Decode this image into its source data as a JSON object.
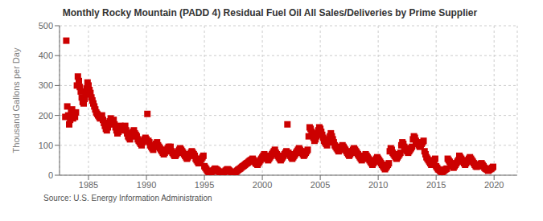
{
  "chart_data": {
    "type": "scatter",
    "title": "Monthly Rocky Mountain (PADD 4) Residual Fuel Oil All Sales/Deliveries by Prime Supplier",
    "ylabel": "Thousand Gallons per Day",
    "annotations": [
      "Source: U.S. Energy Information Administration"
    ],
    "color": "#cc0000",
    "marker": "square",
    "grid": true,
    "xlim": [
      1982.5,
      2022.0
    ],
    "ylim": [
      0,
      500
    ],
    "xticks": [
      1985,
      1990,
      1995,
      2000,
      2005,
      2010,
      2015,
      2020
    ],
    "yticks": [
      0,
      100,
      200,
      300,
      400,
      500
    ],
    "x": [
      1983,
      1983.0833333333333,
      1983.1666666666667,
      1983.25,
      1983.3333333333333,
      1983.4166666666667,
      1983.5,
      1983.5833333333333,
      1983.6666666666667,
      1983.75,
      1983.8333333333333,
      1983.9166666666667,
      1984,
      1984.0833333333333,
      1984.1666666666667,
      1984.25,
      1984.3333333333333,
      1984.4166666666667,
      1984.5,
      1984.5833333333333,
      1984.6666666666667,
      1984.75,
      1984.8333333333333,
      1984.9166666666667,
      1985,
      1985.0833333333333,
      1985.1666666666667,
      1985.25,
      1985.3333333333333,
      1985.4166666666667,
      1985.5,
      1985.5833333333333,
      1985.6666666666667,
      1985.75,
      1985.8333333333333,
      1985.9166666666667,
      1986,
      1986.0833333333333,
      1986.1666666666667,
      1986.25,
      1986.3333333333333,
      1986.4166666666667,
      1986.5,
      1986.5833333333333,
      1986.6666666666667,
      1986.75,
      1986.8333333333333,
      1986.9166666666667,
      1987,
      1987.0833333333333,
      1987.1666666666667,
      1987.25,
      1987.3333333333333,
      1987.4166666666667,
      1987.5,
      1987.5833333333333,
      1987.6666666666667,
      1987.75,
      1987.8333333333333,
      1987.9166666666667,
      1988,
      1988.0833333333333,
      1988.1666666666667,
      1988.25,
      1988.3333333333333,
      1988.4166666666667,
      1988.5,
      1988.5833333333333,
      1988.6666666666667,
      1988.75,
      1988.8333333333333,
      1988.9166666666667,
      1989,
      1989.0833333333333,
      1989.1666666666667,
      1989.25,
      1989.3333333333333,
      1989.4166666666667,
      1989.5,
      1989.5833333333333,
      1989.6666666666667,
      1989.75,
      1989.8333333333333,
      1989.9166666666667,
      1990,
      1990.0833333333333,
      1990.1666666666667,
      1990.25,
      1990.3333333333333,
      1990.4166666666667,
      1990.5,
      1990.5833333333333,
      1990.6666666666667,
      1990.75,
      1990.8333333333333,
      1990.9166666666667,
      1991,
      1991.0833333333333,
      1991.1666666666667,
      1991.25,
      1991.3333333333333,
      1991.4166666666667,
      1991.5,
      1991.5833333333333,
      1991.6666666666667,
      1991.75,
      1991.8333333333333,
      1991.9166666666667,
      1992,
      1992.0833333333333,
      1992.1666666666667,
      1992.25,
      1992.3333333333333,
      1992.4166666666667,
      1992.5,
      1992.5833333333333,
      1992.6666666666667,
      1992.75,
      1992.8333333333333,
      1992.9166666666667,
      1993,
      1993.0833333333333,
      1993.1666666666667,
      1993.25,
      1993.3333333333333,
      1993.4166666666667,
      1993.5,
      1993.5833333333333,
      1993.6666666666667,
      1993.75,
      1993.8333333333333,
      1993.9166666666667,
      1994,
      1994.0833333333333,
      1994.1666666666667,
      1994.25,
      1994.3333333333333,
      1994.4166666666667,
      1994.5,
      1994.5833333333333,
      1994.6666666666667,
      1994.75,
      1994.8333333333333,
      1994.9166666666667,
      1995,
      1995.0833333333333,
      1995.1666666666667,
      1995.25,
      1995.3333333333333,
      1995.4166666666667,
      1995.5,
      1995.5833333333333,
      1995.6666666666667,
      1995.75,
      1995.8333333333333,
      1995.9166666666667,
      1996,
      1996.0833333333333,
      1996.1666666666667,
      1996.25,
      1996.3333333333333,
      1996.4166666666667,
      1996.5,
      1996.5833333333333,
      1996.6666666666667,
      1996.75,
      1996.8333333333333,
      1996.9166666666667,
      1997,
      1997.0833333333333,
      1997.1666666666667,
      1997.25,
      1997.3333333333333,
      1997.4166666666667,
      1997.5,
      1997.5833333333333,
      1997.6666666666667,
      1997.75,
      1997.8333333333333,
      1997.9166666666667,
      1998,
      1998.0833333333333,
      1998.1666666666667,
      1998.25,
      1998.3333333333333,
      1998.4166666666667,
      1998.5,
      1998.5833333333333,
      1998.6666666666667,
      1998.75,
      1998.8333333333333,
      1998.9166666666667,
      1999,
      1999.0833333333333,
      1999.1666666666667,
      1999.25,
      1999.3333333333333,
      1999.4166666666667,
      1999.5,
      1999.5833333333333,
      1999.6666666666667,
      1999.75,
      1999.8333333333333,
      1999.9166666666667,
      2000,
      2000.0833333333333,
      2000.1666666666667,
      2000.25,
      2000.3333333333333,
      2000.4166666666667,
      2000.5,
      2000.5833333333333,
      2000.6666666666667,
      2000.75,
      2000.8333333333333,
      2000.9166666666667,
      2001,
      2001.0833333333333,
      2001.1666666666667,
      2001.25,
      2001.3333333333333,
      2001.4166666666667,
      2001.5,
      2001.5833333333333,
      2001.6666666666667,
      2001.75,
      2001.8333333333333,
      2001.9166666666667,
      2002,
      2002.0833333333333,
      2002.1666666666667,
      2002.25,
      2002.3333333333333,
      2002.4166666666667,
      2002.5,
      2002.5833333333333,
      2002.6666666666667,
      2002.75,
      2002.8333333333333,
      2002.9166666666667,
      2003,
      2003.0833333333333,
      2003.1666666666667,
      2003.25,
      2003.3333333333333,
      2003.4166666666667,
      2003.5,
      2003.5833333333333,
      2003.6666666666667,
      2003.75,
      2003.8333333333333,
      2003.9166666666667,
      2004,
      2004.0833333333333,
      2004.1666666666667,
      2004.25,
      2004.3333333333333,
      2004.4166666666667,
      2004.5,
      2004.5833333333333,
      2004.6666666666667,
      2004.75,
      2004.8333333333333,
      2004.9166666666667,
      2005,
      2005.0833333333333,
      2005.1666666666667,
      2005.25,
      2005.3333333333333,
      2005.4166666666667,
      2005.5,
      2005.5833333333333,
      2005.6666666666667,
      2005.75,
      2005.8333333333333,
      2005.9166666666667,
      2006,
      2006.0833333333333,
      2006.1666666666667,
      2006.25,
      2006.3333333333333,
      2006.4166666666667,
      2006.5,
      2006.5833333333333,
      2006.6666666666667,
      2006.75,
      2006.8333333333333,
      2006.9166666666667,
      2007,
      2007.0833333333333,
      2007.1666666666667,
      2007.25,
      2007.3333333333333,
      2007.4166666666667,
      2007.5,
      2007.5833333333333,
      2007.6666666666667,
      2007.75,
      2007.8333333333333,
      2007.9166666666667,
      2008,
      2008.0833333333333,
      2008.1666666666667,
      2008.25,
      2008.3333333333333,
      2008.4166666666667,
      2008.5,
      2008.5833333333333,
      2008.6666666666667,
      2008.75,
      2008.8333333333333,
      2008.9166666666667,
      2009,
      2009.0833333333333,
      2009.1666666666667,
      2009.25,
      2009.3333333333333,
      2009.4166666666667,
      2009.5,
      2009.5833333333333,
      2009.6666666666667,
      2009.75,
      2009.8333333333333,
      2009.9166666666667,
      2010,
      2010.0833333333333,
      2010.1666666666667,
      2010.25,
      2010.3333333333333,
      2010.4166666666667,
      2010.5,
      2010.5833333333333,
      2010.6666666666667,
      2010.75,
      2010.8333333333333,
      2010.9166666666667,
      2011,
      2011.0833333333333,
      2011.1666666666667,
      2011.25,
      2011.3333333333333,
      2011.4166666666667,
      2011.5,
      2011.5833333333333,
      2011.6666666666667,
      2011.75,
      2011.8333333333333,
      2011.9166666666667,
      2012,
      2012.0833333333333,
      2012.1666666666667,
      2012.25,
      2012.3333333333333,
      2012.4166666666667,
      2012.5,
      2012.5833333333333,
      2012.6666666666667,
      2012.75,
      2012.8333333333333,
      2012.9166666666667,
      2013,
      2013.0833333333333,
      2013.1666666666667,
      2013.25,
      2013.3333333333333,
      2013.4166666666667,
      2013.5,
      2013.5833333333333,
      2013.6666666666667,
      2013.75,
      2013.8333333333333,
      2013.9166666666667,
      2014,
      2014.0833333333333,
      2014.1666666666667,
      2014.25,
      2014.3333333333333,
      2014.4166666666667,
      2014.5,
      2014.5833333333333,
      2014.6666666666667,
      2014.75,
      2014.8333333333333,
      2014.9166666666667,
      2015,
      2015.0833333333333,
      2015.1666666666667,
      2015.25,
      2015.3333333333333,
      2015.4166666666667,
      2015.5,
      2015.5833333333333,
      2015.6666666666667,
      2015.75,
      2015.8333333333333,
      2015.9166666666667,
      2016,
      2016.0833333333333,
      2016.1666666666667,
      2016.25,
      2016.3333333333333,
      2016.4166666666667,
      2016.5,
      2016.5833333333333,
      2016.6666666666667,
      2016.75,
      2016.8333333333333,
      2016.9166666666667,
      2017,
      2017.0833333333333,
      2017.1666666666667,
      2017.25,
      2017.3333333333333,
      2017.4166666666667,
      2017.5,
      2017.5833333333333,
      2017.6666666666667,
      2017.75,
      2017.8333333333333,
      2017.9166666666667,
      2018,
      2018.0833333333333,
      2018.1666666666667,
      2018.25,
      2018.3333333333333,
      2018.4166666666667,
      2018.5,
      2018.5833333333333,
      2018.6666666666667,
      2018.75,
      2018.8333333333333,
      2018.9166666666667,
      2019,
      2019.0833333333333,
      2019.1666666666667,
      2019.25,
      2019.3333333333333,
      2019.4166666666667,
      2019.5,
      2019.5833333333333,
      2019.6666666666667,
      2019.75,
      2019.8333333333333,
      2019.9166666666667
    ],
    "values": [
      195,
      450,
      230,
      200,
      170,
      185,
      210,
      220,
      190,
      200,
      195,
      210,
      300,
      330,
      315,
      295,
      280,
      260,
      245,
      240,
      255,
      270,
      290,
      310,
      300,
      285,
      275,
      260,
      250,
      240,
      230,
      220,
      210,
      205,
      200,
      195,
      190,
      195,
      200,
      185,
      175,
      165,
      155,
      150,
      160,
      170,
      180,
      190,
      175,
      180,
      185,
      170,
      160,
      150,
      140,
      145,
      155,
      165,
      155,
      150,
      155,
      160,
      165,
      150,
      140,
      130,
      125,
      120,
      130,
      140,
      145,
      150,
      140,
      135,
      130,
      120,
      115,
      110,
      105,
      100,
      110,
      115,
      120,
      125,
      120,
      205,
      115,
      110,
      100,
      95,
      90,
      85,
      95,
      100,
      105,
      110,
      100,
      95,
      90,
      85,
      80,
      75,
      70,
      75,
      80,
      85,
      90,
      95,
      90,
      95,
      80,
      75,
      70,
      65,
      65,
      70,
      75,
      80,
      85,
      90,
      85,
      80,
      75,
      70,
      65,
      60,
      55,
      60,
      65,
      70,
      75,
      80,
      75,
      70,
      65,
      55,
      50,
      45,
      40,
      45,
      50,
      55,
      60,
      65,
      30,
      25,
      20,
      15,
      12,
      10,
      8,
      10,
      12,
      15,
      18,
      22,
      20,
      18,
      15,
      12,
      10,
      8,
      7,
      8,
      10,
      12,
      15,
      18,
      20,
      18,
      15,
      12,
      10,
      8,
      7,
      8,
      10,
      12,
      15,
      18,
      20,
      22,
      25,
      28,
      30,
      32,
      35,
      38,
      40,
      42,
      45,
      48,
      50,
      52,
      55,
      50,
      45,
      40,
      38,
      35,
      40,
      45,
      50,
      55,
      60,
      65,
      70,
      65,
      60,
      55,
      50,
      55,
      60,
      65,
      70,
      75,
      80,
      85,
      75,
      70,
      65,
      60,
      55,
      50,
      55,
      60,
      65,
      70,
      75,
      80,
      170,
      75,
      70,
      65,
      60,
      55,
      60,
      65,
      70,
      75,
      80,
      85,
      90,
      85,
      80,
      75,
      70,
      65,
      70,
      75,
      80,
      85,
      130,
      160,
      155,
      145,
      135,
      125,
      115,
      120,
      130,
      140,
      150,
      160,
      155,
      145,
      135,
      125,
      115,
      110,
      105,
      100,
      110,
      120,
      130,
      140,
      130,
      120,
      110,
      100,
      95,
      90,
      85,
      80,
      85,
      90,
      95,
      100,
      95,
      90,
      85,
      80,
      75,
      70,
      65,
      70,
      75,
      80,
      85,
      90,
      85,
      80,
      75,
      70,
      65,
      60,
      55,
      50,
      55,
      60,
      65,
      70,
      65,
      60,
      55,
      50,
      45,
      40,
      35,
      40,
      45,
      50,
      55,
      60,
      55,
      50,
      45,
      40,
      35,
      30,
      25,
      20,
      25,
      30,
      35,
      40,
      80,
      90,
      85,
      75,
      70,
      65,
      60,
      55,
      60,
      65,
      70,
      75,
      100,
      110,
      105,
      95,
      90,
      85,
      80,
      75,
      80,
      85,
      90,
      95,
      120,
      130,
      125,
      115,
      110,
      105,
      100,
      95,
      100,
      105,
      110,
      115,
      80,
      70,
      60,
      55,
      50,
      45,
      40,
      35,
      40,
      45,
      50,
      55,
      30,
      25,
      20,
      18,
      15,
      12,
      10,
      12,
      15,
      18,
      20,
      22,
      55,
      50,
      45,
      40,
      35,
      30,
      25,
      30,
      35,
      40,
      45,
      50,
      65,
      60,
      55,
      50,
      45,
      40,
      35,
      40,
      45,
      50,
      55,
      60,
      55,
      50,
      45,
      40,
      35,
      30,
      28,
      30,
      32,
      35,
      38,
      40,
      35,
      30,
      25,
      22,
      20,
      18,
      15,
      18,
      20,
      22,
      25,
      28
    ]
  }
}
